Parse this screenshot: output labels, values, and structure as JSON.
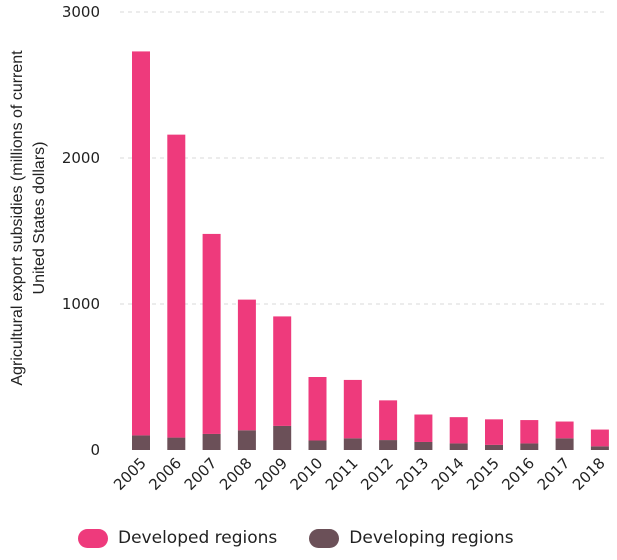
{
  "chart_data": {
    "type": "bar",
    "stacked": true,
    "categories": [
      "2005",
      "2006",
      "2007",
      "2008",
      "2009",
      "2010",
      "2011",
      "2012",
      "2013",
      "2014",
      "2015",
      "2016",
      "2017",
      "2018"
    ],
    "series": [
      {
        "name": "Developing regions",
        "color": "#6b5058",
        "values": [
          100,
          85,
          110,
          135,
          165,
          65,
          80,
          68,
          55,
          45,
          35,
          45,
          80,
          25
        ]
      },
      {
        "name": "Developed regions",
        "color": "#ee3a7c",
        "values": [
          2630,
          2075,
          1370,
          895,
          750,
          435,
          400,
          272,
          188,
          180,
          175,
          160,
          115,
          115
        ]
      }
    ],
    "ylabel_lines": [
      "Agricultural export subsidies (millions of current",
      "United States dollars)"
    ],
    "xlabel": "",
    "ylim": [
      0,
      3000
    ],
    "yticks": [
      0,
      1000,
      2000,
      3000
    ],
    "grid": true,
    "legend_position": "bottom"
  },
  "legend": {
    "items": [
      {
        "label": "Developed regions",
        "color": "#ee3a7c"
      },
      {
        "label": "Developing regions",
        "color": "#6b5058"
      }
    ]
  }
}
